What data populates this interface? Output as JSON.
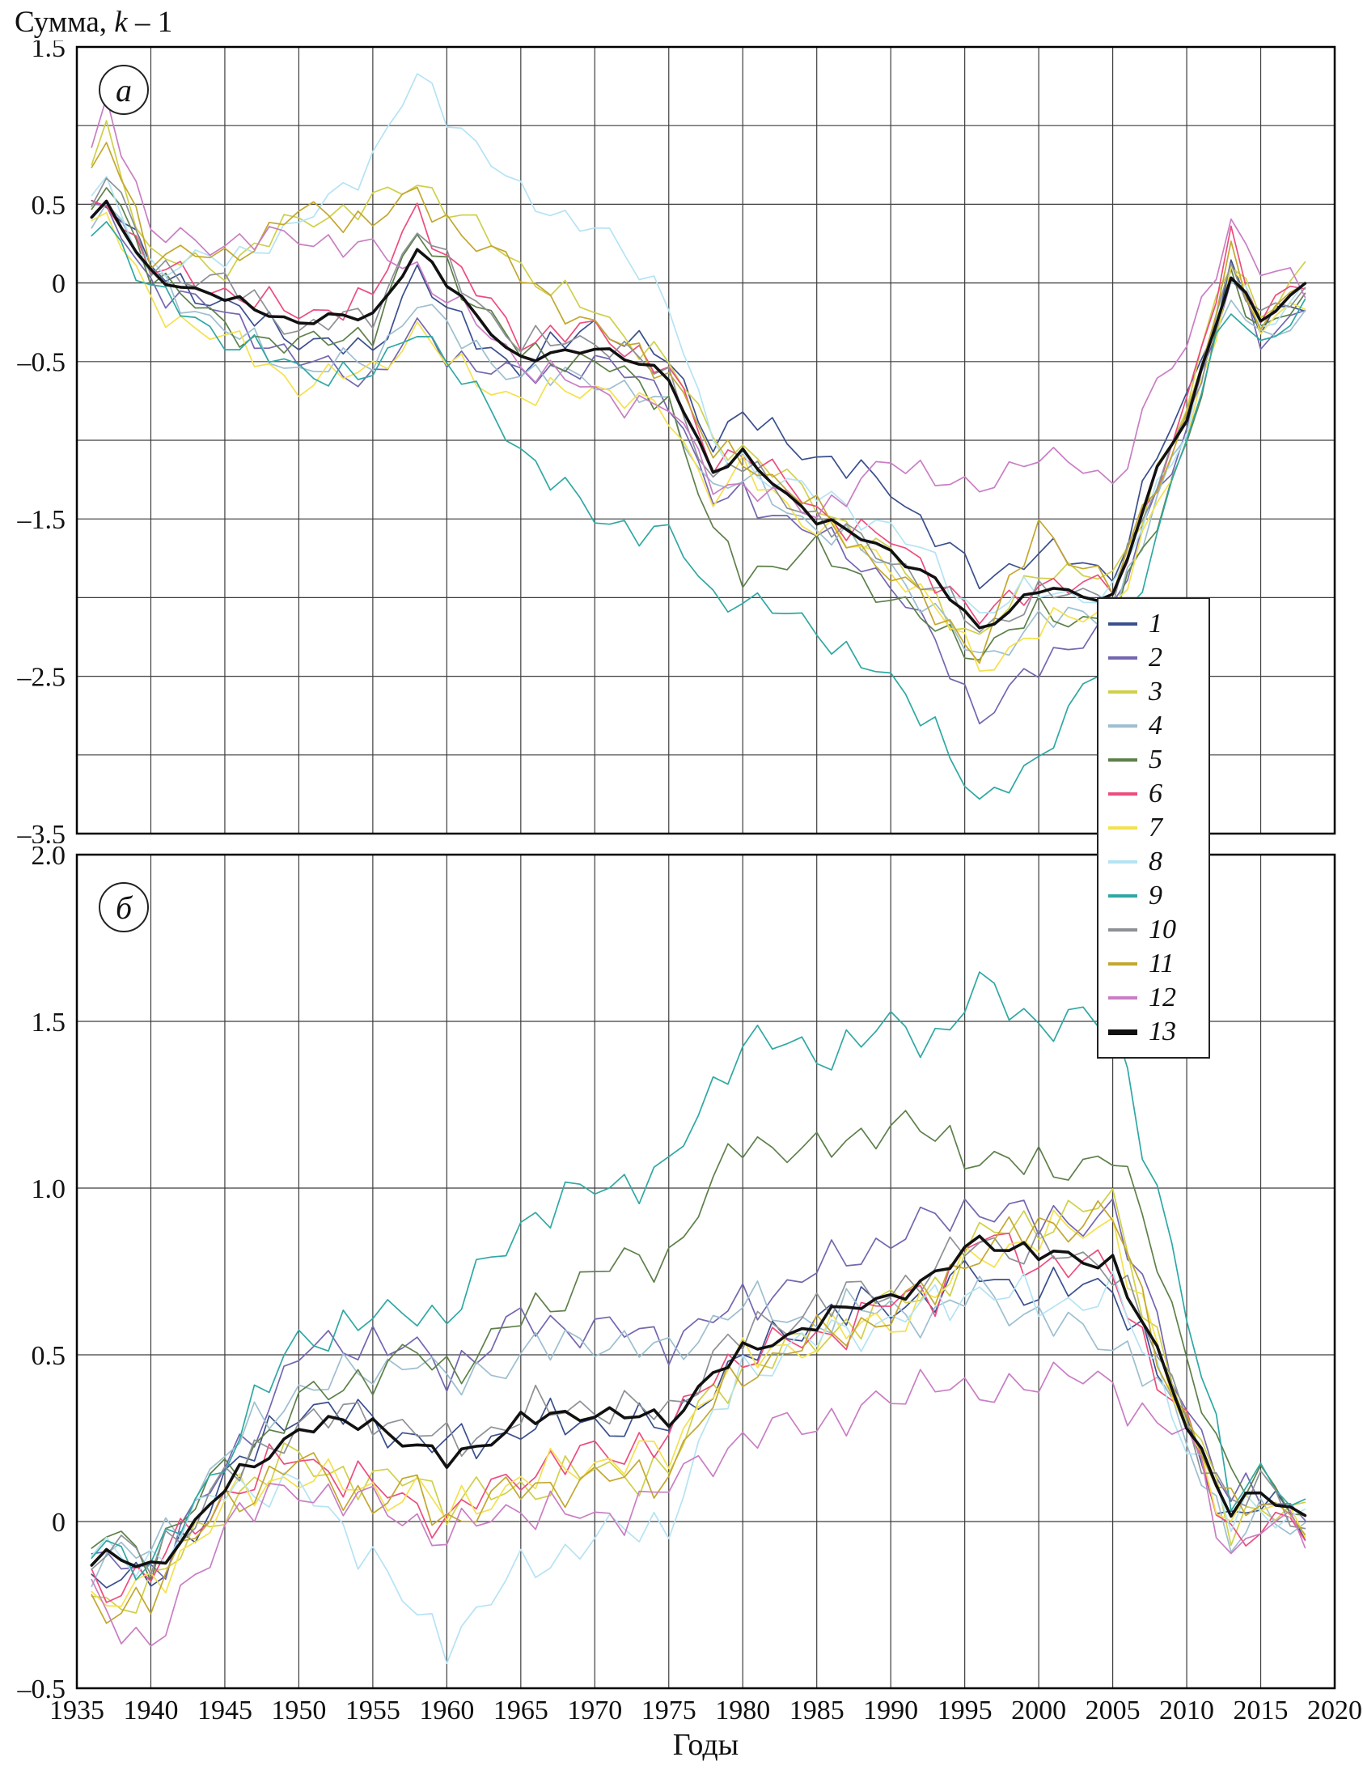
{
  "figure": {
    "y_axis_title": {
      "prefix": "Сумма, ",
      "k": "k",
      "suffix": " – 1"
    },
    "x_axis_title": "Годы",
    "panel_a_letter": "а",
    "panel_b_letter": "б"
  },
  "legend": [
    {
      "label": "1",
      "color": "#3a4f8e"
    },
    {
      "label": "2",
      "color": "#7466b0"
    },
    {
      "label": "3",
      "color": "#cfd049"
    },
    {
      "label": "4",
      "color": "#9dbfcf"
    },
    {
      "label": "5",
      "color": "#5d8049"
    },
    {
      "label": "6",
      "color": "#ec4d7e"
    },
    {
      "label": "7",
      "color": "#f4e14e"
    },
    {
      "label": "8",
      "color": "#b5e3f4"
    },
    {
      "label": "9",
      "color": "#2fa8a3"
    },
    {
      "label": "10",
      "color": "#8d9196"
    },
    {
      "label": "11",
      "color": "#c3a72f"
    },
    {
      "label": "12",
      "color": "#c97ec4"
    },
    {
      "label": "13",
      "color": "#111111"
    }
  ],
  "x_axis": {
    "values": [
      1935,
      1940,
      1945,
      1950,
      1955,
      1960,
      1965,
      1970,
      1975,
      1980,
      1985,
      1990,
      1995,
      2000,
      2005,
      2010,
      2015,
      2020
    ],
    "labels": [
      "1935",
      "1940",
      "1945",
      "1950",
      "1955",
      "1960",
      "1965",
      "1970",
      "1975",
      "1980",
      "1985",
      "1990",
      "1995",
      "2000",
      "2005",
      "2010",
      "2015",
      "2020"
    ]
  },
  "chart_data": [
    {
      "type": "line",
      "panel": "а",
      "xlim": [
        1935,
        2020
      ],
      "ylim": [
        -3.5,
        1.5
      ],
      "grid_step_y": 0.5,
      "yticks": [
        {
          "v": 1.5,
          "t": "1.5"
        },
        {
          "v": 0.5,
          "t": "0.5"
        },
        {
          "v": 0,
          "t": "0"
        },
        {
          "v": -0.5,
          "t": "–0.5"
        },
        {
          "v": -1.5,
          "t": "–1.5"
        },
        {
          "v": -2.5,
          "t": "–2.5"
        },
        {
          "v": -3.5,
          "t": "–3.5"
        }
      ],
      "x": [
        1935,
        1937,
        1940,
        1945,
        1950,
        1955,
        1958,
        1960,
        1965,
        1970,
        1975,
        1978,
        1980,
        1985,
        1990,
        1993,
        1996,
        2000,
        2005,
        2008,
        2010,
        2013,
        2015,
        2018
      ],
      "series": [
        {
          "name": "1",
          "color": "#3a4f8e",
          "values": [
            0.45,
            0.55,
            0.1,
            -0.15,
            -0.35,
            -0.45,
            0.1,
            -0.2,
            -0.55,
            -0.25,
            -0.5,
            -1.0,
            -0.85,
            -1.1,
            -1.3,
            -1.6,
            -1.9,
            -1.7,
            -1.85,
            -1.1,
            -0.75,
            0.1,
            -0.3,
            -0.1
          ]
        },
        {
          "name": "2",
          "color": "#7466b0",
          "values": [
            0.4,
            0.45,
            0.0,
            -0.2,
            -0.5,
            -0.6,
            -0.3,
            -0.45,
            -0.6,
            -0.5,
            -0.7,
            -1.4,
            -1.35,
            -1.6,
            -1.9,
            -2.3,
            -2.75,
            -2.45,
            -2.1,
            -1.35,
            -0.9,
            0.0,
            -0.35,
            -0.15
          ]
        },
        {
          "name": "3",
          "color": "#cfd049",
          "values": [
            0.5,
            1.0,
            0.15,
            0.1,
            0.4,
            0.5,
            0.65,
            0.5,
            0.1,
            -0.2,
            -0.5,
            -1.0,
            -1.05,
            -1.4,
            -1.75,
            -2.0,
            -2.3,
            -1.8,
            -1.9,
            -1.2,
            -0.8,
            0.2,
            -0.2,
            0.05
          ]
        },
        {
          "name": "4",
          "color": "#9dbfcf",
          "values": [
            0.4,
            0.5,
            0.05,
            -0.3,
            -0.55,
            -0.5,
            -0.1,
            -0.3,
            -0.6,
            -0.6,
            -0.8,
            -1.3,
            -1.25,
            -1.55,
            -1.8,
            -2.1,
            -2.4,
            -2.15,
            -2.1,
            -1.4,
            -0.95,
            -0.05,
            -0.4,
            -0.2
          ]
        },
        {
          "name": "5",
          "color": "#5d8049",
          "values": [
            0.35,
            0.6,
            0.1,
            -0.3,
            -0.4,
            -0.3,
            0.3,
            0.1,
            -0.45,
            -0.5,
            -0.75,
            -1.6,
            -1.85,
            -1.7,
            -2.0,
            -2.2,
            -2.35,
            -2.1,
            -2.15,
            -1.5,
            -1.0,
            0.0,
            -0.3,
            -0.05
          ]
        },
        {
          "name": "6",
          "color": "#ec4d7e",
          "values": [
            0.4,
            0.55,
            0.1,
            -0.05,
            -0.2,
            -0.1,
            0.5,
            0.15,
            -0.35,
            -0.3,
            -0.55,
            -1.15,
            -1.05,
            -1.45,
            -1.65,
            -1.85,
            -2.15,
            -1.9,
            -1.95,
            -1.25,
            -0.8,
            0.3,
            -0.2,
            0.0
          ]
        },
        {
          "name": "7",
          "color": "#f4e14e",
          "values": [
            0.3,
            0.45,
            -0.15,
            -0.35,
            -0.65,
            -0.55,
            -0.3,
            -0.5,
            -0.75,
            -0.65,
            -0.85,
            -1.35,
            -1.2,
            -1.55,
            -1.8,
            -2.05,
            -2.45,
            -2.2,
            -2.05,
            -1.45,
            -1.0,
            0.1,
            -0.3,
            -0.1
          ]
        },
        {
          "name": "8",
          "color": "#b5e3f4",
          "values": [
            0.45,
            0.6,
            0.1,
            0.15,
            0.35,
            0.8,
            1.3,
            1.1,
            0.55,
            0.35,
            -0.1,
            -1.05,
            -1.15,
            -1.35,
            -1.55,
            -1.8,
            -2.1,
            -1.95,
            -2.0,
            -1.3,
            -0.9,
            0.05,
            -0.25,
            -0.05
          ]
        },
        {
          "name": "9",
          "color": "#2fa8a3",
          "values": [
            0.3,
            0.4,
            -0.05,
            -0.35,
            -0.55,
            -0.6,
            -0.25,
            -0.5,
            -1.05,
            -1.5,
            -1.6,
            -2.0,
            -2.0,
            -2.2,
            -2.55,
            -2.8,
            -3.35,
            -3.0,
            -2.35,
            -1.6,
            -1.0,
            -0.1,
            -0.4,
            -0.2
          ]
        },
        {
          "name": "10",
          "color": "#8d9196",
          "values": [
            0.4,
            0.7,
            0.1,
            0.0,
            -0.3,
            -0.2,
            0.35,
            0.1,
            -0.4,
            -0.35,
            -0.6,
            -1.25,
            -1.15,
            -1.5,
            -1.75,
            -1.95,
            -2.2,
            -2.0,
            -1.95,
            -1.3,
            -0.85,
            0.1,
            -0.25,
            0.0
          ]
        },
        {
          "name": "11",
          "color": "#c3a72f",
          "values": [
            0.45,
            0.9,
            0.2,
            0.15,
            0.45,
            0.4,
            0.55,
            0.4,
            0.05,
            -0.3,
            -0.55,
            -1.1,
            -1.1,
            -1.45,
            -1.85,
            -2.1,
            -2.35,
            -1.55,
            -1.95,
            -1.25,
            -0.85,
            0.15,
            -0.25,
            0.05
          ]
        },
        {
          "name": "12",
          "color": "#c97ec4",
          "values": [
            0.45,
            1.2,
            0.3,
            0.25,
            0.3,
            0.2,
            0.1,
            -0.1,
            -0.5,
            -0.7,
            -0.8,
            -1.25,
            -1.3,
            -1.45,
            -1.15,
            -1.2,
            -1.35,
            -1.05,
            -1.3,
            -0.6,
            -0.45,
            0.4,
            0.1,
            -0.05
          ]
        },
        {
          "name": "13",
          "color": "#111111",
          "values": [
            0.35,
            0.5,
            0.05,
            -0.1,
            -0.25,
            -0.2,
            0.2,
            0.0,
            -0.5,
            -0.4,
            -0.6,
            -1.2,
            -1.1,
            -1.5,
            -1.7,
            -1.9,
            -2.2,
            -1.95,
            -2.0,
            -1.2,
            -0.85,
            0.05,
            -0.25,
            0.0
          ]
        }
      ]
    },
    {
      "type": "line",
      "panel": "б",
      "xlim": [
        1935,
        2020
      ],
      "ylim": [
        -0.5,
        2.0
      ],
      "grid_step_y": 0.5,
      "yticks": [
        {
          "v": 2.0,
          "t": "2.0"
        },
        {
          "v": 1.5,
          "t": "1.5"
        },
        {
          "v": 1.0,
          "t": "1.0"
        },
        {
          "v": 0.5,
          "t": "0.5"
        },
        {
          "v": 0,
          "t": "0"
        },
        {
          "v": -0.5,
          "t": "–0.5"
        }
      ],
      "x": [
        1935,
        1937,
        1940,
        1945,
        1950,
        1955,
        1958,
        1960,
        1965,
        1970,
        1975,
        1978,
        1980,
        1985,
        1990,
        1993,
        1996,
        2000,
        2005,
        2008,
        2010,
        2013,
        2015,
        2018
      ],
      "series": [
        {
          "name": "1",
          "color": "#3a4f8e",
          "values": [
            -0.2,
            -0.15,
            -0.2,
            0.12,
            0.35,
            0.3,
            0.25,
            0.22,
            0.28,
            0.3,
            0.28,
            0.42,
            0.48,
            0.62,
            0.65,
            0.68,
            0.75,
            0.68,
            0.72,
            0.45,
            0.28,
            0.0,
            0.05,
            0.0
          ]
        },
        {
          "name": "2",
          "color": "#7466b0",
          "values": [
            -0.18,
            -0.12,
            -0.15,
            0.15,
            0.5,
            0.55,
            0.5,
            0.45,
            0.6,
            0.58,
            0.55,
            0.6,
            0.65,
            0.75,
            0.85,
            0.9,
            0.95,
            0.9,
            0.92,
            0.6,
            0.35,
            0.05,
            0.1,
            0.02
          ]
        },
        {
          "name": "3",
          "color": "#cfd049",
          "values": [
            -0.2,
            -0.25,
            -0.2,
            0.05,
            0.2,
            0.1,
            0.15,
            0.05,
            0.1,
            0.15,
            0.15,
            0.4,
            0.45,
            0.55,
            0.65,
            0.7,
            0.85,
            0.9,
            0.95,
            0.55,
            0.3,
            0.0,
            0.05,
            0.0
          ]
        },
        {
          "name": "4",
          "color": "#9dbfcf",
          "values": [
            -0.15,
            -0.1,
            -0.1,
            0.2,
            0.4,
            0.45,
            0.5,
            0.4,
            0.5,
            0.55,
            0.5,
            0.6,
            0.65,
            0.6,
            0.65,
            0.6,
            0.7,
            0.6,
            0.55,
            0.4,
            0.25,
            -0.05,
            0.0,
            -0.02
          ]
        },
        {
          "name": "5",
          "color": "#5d8049",
          "values": [
            -0.1,
            -0.05,
            -0.1,
            0.15,
            0.35,
            0.45,
            0.5,
            0.45,
            0.6,
            0.75,
            0.8,
            1.0,
            1.15,
            1.1,
            1.2,
            1.15,
            1.1,
            1.05,
            1.1,
            0.8,
            0.5,
            0.1,
            0.15,
            0.03
          ]
        },
        {
          "name": "6",
          "color": "#ec4d7e",
          "values": [
            -0.15,
            -0.2,
            -0.15,
            0.08,
            0.2,
            0.1,
            0.05,
            0.0,
            0.15,
            0.2,
            0.25,
            0.45,
            0.5,
            0.55,
            0.65,
            0.7,
            0.85,
            0.78,
            0.75,
            0.45,
            0.28,
            -0.05,
            0.0,
            -0.03
          ]
        },
        {
          "name": "7",
          "color": "#f4e14e",
          "values": [
            -0.2,
            -0.25,
            -0.2,
            0.05,
            0.15,
            0.08,
            0.1,
            0.02,
            0.12,
            0.18,
            0.2,
            0.42,
            0.48,
            0.55,
            0.6,
            0.68,
            0.8,
            0.85,
            0.9,
            0.5,
            0.28,
            0.0,
            0.05,
            0.0
          ]
        },
        {
          "name": "8",
          "color": "#b5e3f4",
          "values": [
            -0.15,
            -0.1,
            -0.12,
            0.1,
            0.1,
            -0.1,
            -0.3,
            -0.35,
            -0.15,
            -0.05,
            0.0,
            0.3,
            0.45,
            0.55,
            0.6,
            0.65,
            0.7,
            0.65,
            0.68,
            0.45,
            0.25,
            0.0,
            0.05,
            0.0
          ]
        },
        {
          "name": "9",
          "color": "#2fa8a3",
          "values": [
            -0.1,
            -0.05,
            -0.15,
            0.2,
            0.55,
            0.6,
            0.65,
            0.6,
            0.9,
            1.0,
            1.05,
            1.3,
            1.45,
            1.4,
            1.48,
            1.45,
            1.6,
            1.5,
            1.5,
            1.0,
            0.6,
            0.1,
            0.15,
            0.0
          ]
        },
        {
          "name": "10",
          "color": "#8d9196",
          "values": [
            -0.12,
            -0.08,
            -0.12,
            0.12,
            0.3,
            0.32,
            0.28,
            0.22,
            0.32,
            0.35,
            0.32,
            0.5,
            0.55,
            0.65,
            0.7,
            0.75,
            0.85,
            0.8,
            0.78,
            0.5,
            0.3,
            0.05,
            0.1,
            0.0
          ]
        },
        {
          "name": "11",
          "color": "#c3a72f",
          "values": [
            -0.22,
            -0.3,
            -0.2,
            0.05,
            0.18,
            0.05,
            0.1,
            0.0,
            0.1,
            0.12,
            0.15,
            0.35,
            0.45,
            0.55,
            0.62,
            0.7,
            0.82,
            0.88,
            0.92,
            0.52,
            0.3,
            0.02,
            0.08,
            0.0
          ]
        },
        {
          "name": "12",
          "color": "#c97ec4",
          "values": [
            -0.15,
            -0.25,
            -0.4,
            0.0,
            0.1,
            0.05,
            0.0,
            -0.05,
            0.05,
            0.0,
            0.1,
            0.2,
            0.25,
            0.3,
            0.35,
            0.45,
            0.35,
            0.45,
            0.4,
            0.3,
            0.25,
            -0.1,
            0.0,
            -0.05
          ]
        },
        {
          "name": "13",
          "color": "#111111",
          "values": [
            -0.15,
            -0.1,
            -0.15,
            0.1,
            0.28,
            0.3,
            0.22,
            0.18,
            0.3,
            0.33,
            0.3,
            0.45,
            0.5,
            0.6,
            0.68,
            0.73,
            0.85,
            0.8,
            0.78,
            0.5,
            0.3,
            0.03,
            0.08,
            0.02
          ]
        }
      ]
    }
  ]
}
